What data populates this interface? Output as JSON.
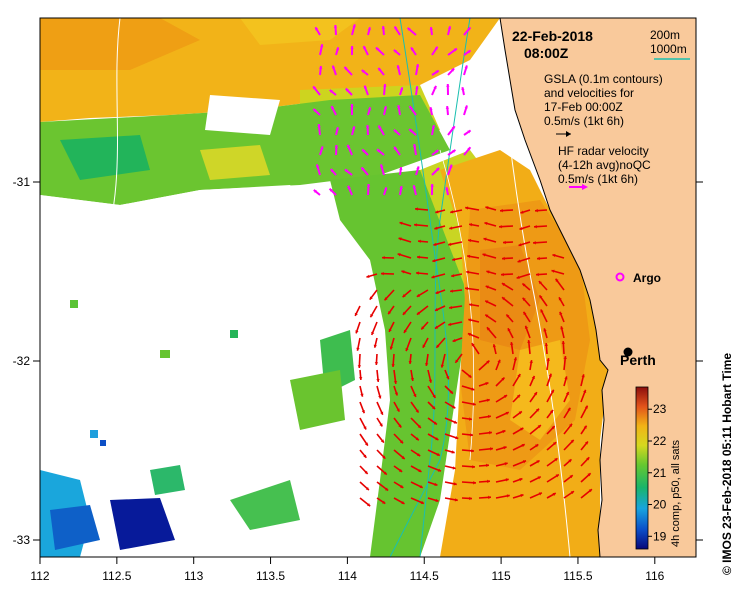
{
  "map": {
    "title_date": "22-Feb-2018",
    "title_time": "08:00Z",
    "x_axis": {
      "ticks": [
        "112",
        "112.5",
        "113",
        "113.5",
        "114",
        "114.5",
        "115",
        "115.5",
        "116"
      ],
      "values": [
        112,
        112.5,
        113,
        113.5,
        114,
        114.5,
        115,
        115.5,
        116
      ]
    },
    "y_axis": {
      "ticks": [
        "-31",
        "-32",
        "-33"
      ],
      "values": [
        -31,
        -32,
        -33
      ]
    },
    "depth_legend": {
      "a": "200m",
      "b": "1000m",
      "color_b": "#1abfb0"
    },
    "gsla_text": [
      "GSLA (0.1m contours)",
      "and velocities for",
      "17-Feb 00:00Z",
      "0.5m/s (1kt 6h)"
    ],
    "hf_text": [
      "HF radar velocity",
      "(4-12h avg)noQC",
      "0.5m/s (1kt 6h)"
    ],
    "argo_label": "Argo",
    "perth_label": "Perth",
    "colorbar": {
      "title": "4h comp, p50, all sats",
      "ticks": [
        "23",
        "22",
        "21",
        "20",
        "19"
      ],
      "values": [
        23,
        22,
        21,
        20,
        19
      ],
      "range": [
        18.6,
        23.7
      ]
    },
    "credit": "© IMOS 23-Feb-2018 05:11 Hobart Time",
    "colors": {
      "land": "#f9c99b",
      "hf_arrow": "#ff00ff",
      "gsla_arrow": "#e60000",
      "cyan": "#1abfb0"
    }
  }
}
